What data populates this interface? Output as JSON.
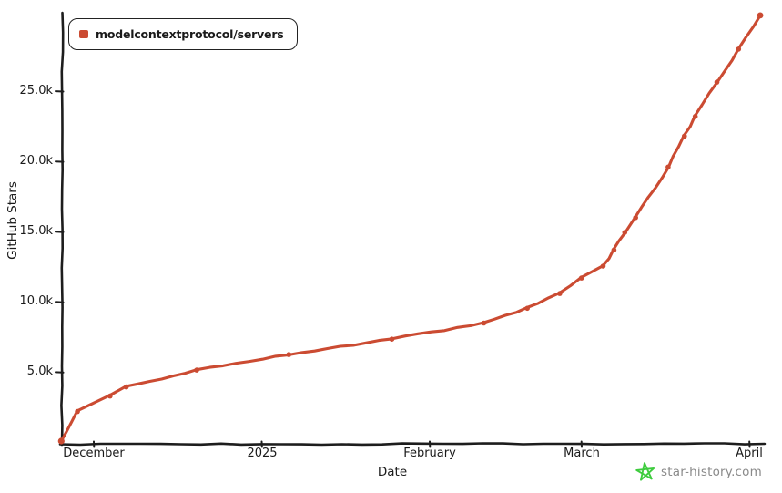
{
  "watermark": {
    "text": "star-history.com",
    "star_icon_color": "#3ecc3e",
    "text_color": "#8a8a8a"
  },
  "legend": {
    "items": [
      {
        "label": "modelcontextprotocol/servers",
        "color": "#cb4b32"
      }
    ]
  },
  "chart_data": {
    "type": "line",
    "title": "",
    "xlabel": "Date",
    "ylabel": "GitHub Stars",
    "style": "xkcd-hand-drawn",
    "grid": false,
    "legend_position": "top-left",
    "axis_color": "#1d1d1d",
    "x_range": [
      "2024-11-25",
      "2025-04-06"
    ],
    "ylim": [
      0,
      30500
    ],
    "x_ticks": [
      {
        "date": "2024-12-01",
        "label": "December"
      },
      {
        "date": "2025-01-01",
        "label": "2025"
      },
      {
        "date": "2025-02-01",
        "label": "February"
      },
      {
        "date": "2025-03-01",
        "label": "March"
      },
      {
        "date": "2025-04-01",
        "label": "April"
      }
    ],
    "y_ticks": [
      {
        "value": 5000,
        "label": "5.0k"
      },
      {
        "value": 10000,
        "label": "10.0k"
      },
      {
        "value": 15000,
        "label": "15.0k"
      },
      {
        "value": 20000,
        "label": "20.0k"
      },
      {
        "value": 25000,
        "label": "25.0k"
      }
    ],
    "series": [
      {
        "name": "modelcontextprotocol/servers",
        "color": "#cb4b32",
        "points": [
          {
            "date": "2024-11-25",
            "stars": 100
          },
          {
            "date": "2024-11-28",
            "stars": 2200
          },
          {
            "date": "2024-12-04",
            "stars": 3300
          },
          {
            "date": "2024-12-07",
            "stars": 3950
          },
          {
            "date": "2024-12-20",
            "stars": 5150
          },
          {
            "date": "2025-01-06",
            "stars": 6250
          },
          {
            "date": "2025-01-25",
            "stars": 7350
          },
          {
            "date": "2025-02-11",
            "stars": 8500
          },
          {
            "date": "2025-02-19",
            "stars": 9550
          },
          {
            "date": "2025-02-25",
            "stars": 10600
          },
          {
            "date": "2025-03-01",
            "stars": 11700
          },
          {
            "date": "2025-03-05",
            "stars": 12550
          },
          {
            "date": "2025-03-07",
            "stars": 13700
          },
          {
            "date": "2025-03-09",
            "stars": 14950
          },
          {
            "date": "2025-03-11",
            "stars": 16000
          },
          {
            "date": "2025-03-17",
            "stars": 19600
          },
          {
            "date": "2025-03-20",
            "stars": 21800
          },
          {
            "date": "2025-03-22",
            "stars": 23200
          },
          {
            "date": "2025-03-26",
            "stars": 25650
          },
          {
            "date": "2025-03-30",
            "stars": 28000
          },
          {
            "date": "2025-04-03",
            "stars": 30400
          }
        ]
      }
    ]
  }
}
